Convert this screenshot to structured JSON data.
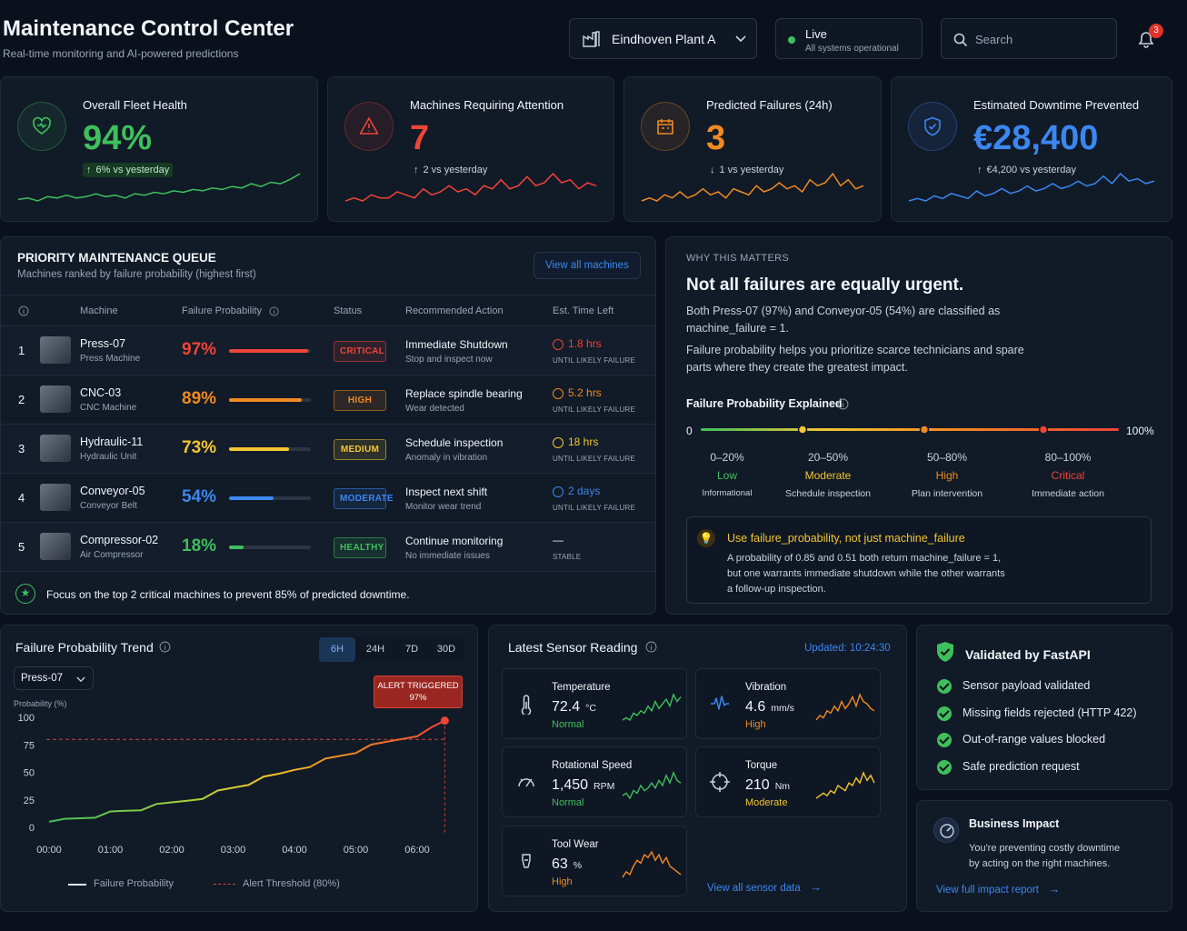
{
  "header": {
    "title": "Maintenance Control Center",
    "subtitle": "Real-time monitoring and AI-powered predictions",
    "plant": "Eindhoven Plant A",
    "live_label": "Live",
    "live_sub": "All systems operational",
    "search_placeholder": "Search",
    "notif_count": "3"
  },
  "kpis": [
    {
      "title": "Overall Fleet Health",
      "value": "94%",
      "delta": "6% vs yesterday",
      "color": "#3fbf5c",
      "spark": [
        4,
        5,
        3,
        6,
        5,
        7,
        5,
        6,
        8,
        6,
        7,
        5,
        8,
        7,
        9,
        8,
        10,
        9,
        11,
        10,
        12,
        11,
        13,
        12,
        15,
        13,
        16,
        15,
        18,
        22
      ]
    },
    {
      "title": "Machines Requiring Attention",
      "value": "7",
      "delta": "2 vs yesterday",
      "color": "#ef4438",
      "spark": [
        5,
        6,
        5,
        7,
        6,
        6,
        8,
        7,
        6,
        9,
        7,
        8,
        10,
        8,
        9,
        7,
        10,
        9,
        12,
        9,
        10,
        13,
        10,
        11,
        14,
        11,
        12,
        9,
        11,
        10
      ]
    },
    {
      "title": "Predicted Failures (24h)",
      "value": "3",
      "delta": "1 vs yesterday",
      "color": "#f08a22",
      "spark": [
        5,
        6,
        5,
        7,
        6,
        8,
        6,
        7,
        9,
        7,
        8,
        6,
        9,
        8,
        7,
        10,
        8,
        9,
        11,
        9,
        10,
        8,
        12,
        10,
        11,
        14,
        10,
        12,
        9,
        10
      ]
    },
    {
      "title": "Estimated Downtime Prevented",
      "value": "€28,400",
      "delta": "€4,200 vs yesterday",
      "color": "#3b87f0",
      "spark": [
        4,
        5,
        4,
        6,
        5,
        7,
        6,
        5,
        8,
        6,
        7,
        9,
        7,
        8,
        10,
        8,
        9,
        11,
        9,
        10,
        12,
        10,
        11,
        14,
        11,
        15,
        12,
        13,
        11,
        12
      ]
    }
  ],
  "queue": {
    "title": "PRIORITY MAINTENANCE QUEUE",
    "subtitle": "Machines ranked by failure probability (highest first)",
    "view_all": "View all machines",
    "columns": {
      "machine": "Machine",
      "prob": "Failure Probability",
      "status": "Status",
      "action": "Recommended Action",
      "time": "Est. Time Left"
    },
    "rows": [
      {
        "rank": "1",
        "name": "Press-07",
        "type": "Press Machine",
        "prob_label": "97%",
        "prob": 0.97,
        "color": "#ef4438",
        "status": "CRITICAL",
        "action": "Immediate Shutdown",
        "action_sub": "Stop and inspect now",
        "time": "1.8 hrs",
        "time_sub": "UNTIL LIKELY FAILURE"
      },
      {
        "rank": "2",
        "name": "CNC-03",
        "type": "CNC Machine",
        "prob_label": "89%",
        "prob": 0.89,
        "color": "#f08a22",
        "status": "HIGH",
        "action": "Replace spindle bearing",
        "action_sub": "Wear detected",
        "time": "5.2 hrs",
        "time_sub": "UNTIL LIKELY FAILURE"
      },
      {
        "rank": "3",
        "name": "Hydraulic-11",
        "type": "Hydraulic Unit",
        "prob_label": "73%",
        "prob": 0.73,
        "color": "#f3c531",
        "status": "MEDIUM",
        "action": "Schedule inspection",
        "action_sub": "Anomaly in vibration",
        "time": "18 hrs",
        "time_sub": "UNTIL LIKELY FAILURE"
      },
      {
        "rank": "4",
        "name": "Conveyor-05",
        "type": "Conveyor Belt",
        "prob_label": "54%",
        "prob": 0.54,
        "color": "#3b87f0",
        "status": "MODERATE",
        "action": "Inspect next shift",
        "action_sub": "Monitor wear trend",
        "time": "2 days",
        "time_sub": "UNTIL LIKELY FAILURE"
      },
      {
        "rank": "5",
        "name": "Compressor-02",
        "type": "Air Compressor",
        "prob_label": "18%",
        "prob": 0.18,
        "color": "#3fbf5c",
        "status": "HEALTHY",
        "action": "Continue monitoring",
        "action_sub": "No immediate issues",
        "time": "—",
        "time_sub": "STABLE"
      }
    ],
    "footer": "Focus on the top 2 critical machines to prevent 85% of predicted downtime."
  },
  "why": {
    "kicker": "WHY THIS MATTERS",
    "heading": "Not all failures are equally urgent.",
    "p1a": "Both Press-07 (97%) and Conveyor-05 (54%) are classified as",
    "p1b": "machine_failure = 1.",
    "p2a": "Failure probability helps you prioritize scarce technicians and spare",
    "p2b": "parts where they create the greatest impact.",
    "explained": "Failure Probability Explained",
    "scale_min": "0",
    "scale_max": "100%",
    "bands": [
      {
        "range": "0–20%",
        "name": "Low",
        "desc": "Informational",
        "color": "#3fbf5c"
      },
      {
        "range": "20–50%",
        "name": "Moderate",
        "desc": "Schedule inspection",
        "color": "#f3c531"
      },
      {
        "range": "50–80%",
        "name": "High",
        "desc": "Plan intervention",
        "color": "#f08a22"
      },
      {
        "range": "80–100%",
        "name": "Critical",
        "desc": "Immediate action",
        "color": "#ef4438"
      }
    ],
    "tip_title": "Use failure_probability, not just machine_failure",
    "tip_l1": "A probability of 0.85 and 0.51 both return machine_failure = 1,",
    "tip_l2": "but one warrants immediate shutdown while the other warrants",
    "tip_l3": "a follow-up inspection."
  },
  "trend": {
    "title": "Failure Probability Trend",
    "ranges": [
      "6H",
      "24H",
      "7D",
      "30D"
    ],
    "selected_range": "6H",
    "machine": "Press-07",
    "alert_l1": "ALERT TRIGGERED",
    "alert_l2": "97%",
    "legend_line": "Failure Probability",
    "legend_threshold": "Alert Threshold (80%)",
    "chart_data": {
      "type": "line",
      "ylabel": "Probability (%)",
      "ylim": [
        0,
        100
      ],
      "yticks": [
        "0",
        "25",
        "50",
        "75",
        "100"
      ],
      "xticks": [
        "00:00",
        "01:00",
        "02:00",
        "03:00",
        "04:00",
        "05:00",
        "06:00"
      ],
      "threshold": 80,
      "x": [
        0,
        0.25,
        0.5,
        0.75,
        1,
        1.25,
        1.5,
        1.75,
        2,
        2.25,
        2.5,
        2.75,
        3,
        3.25,
        3.5,
        3.75,
        4,
        4.25,
        4.5,
        4.75,
        5,
        5.25,
        5.5,
        5.75,
        6,
        6.25,
        6.45
      ],
      "y": [
        5,
        7,
        9,
        11,
        13,
        15,
        17,
        19,
        22,
        25,
        28,
        32,
        36,
        40,
        44,
        48,
        53,
        57,
        61,
        65,
        69,
        73,
        77,
        81,
        85,
        90,
        97
      ],
      "series": [
        {
          "name": "Failure Probability"
        }
      ]
    }
  },
  "sensors": {
    "title": "Latest Sensor Reading",
    "updated": "Updated: 10:24:30",
    "items": [
      {
        "name": "Temperature",
        "value": "72.4",
        "unit": "°C",
        "state": "Normal",
        "color": "#3fbf5c"
      },
      {
        "name": "Vibration",
        "value": "4.6",
        "unit": "mm/s",
        "state": "High",
        "color": "#f08a22"
      },
      {
        "name": "Rotational Speed",
        "value": "1,450",
        "unit": "RPM",
        "state": "Normal",
        "color": "#3fbf5c"
      },
      {
        "name": "Torque",
        "value": "210",
        "unit": "Nm",
        "state": "Moderate",
        "color": "#f3c531"
      },
      {
        "name": "Tool Wear",
        "value": "63",
        "unit": "%",
        "state": "High",
        "color": "#f08a22"
      }
    ],
    "view_all": "View all sensor data"
  },
  "validated": {
    "title": "Validated by FastAPI",
    "items": [
      "Sensor payload validated",
      "Missing fields rejected (HTTP 422)",
      "Out-of-range values blocked",
      "Safe prediction request"
    ]
  },
  "impact": {
    "title": "Business Impact",
    "l1": "You're preventing costly downtime",
    "l2": "by acting on the right machines.",
    "link": "View full impact report"
  }
}
